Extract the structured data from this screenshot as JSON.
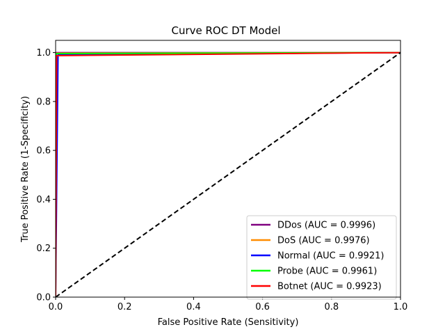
{
  "chart_data": {
    "type": "line",
    "title": "Curve ROC DT Model",
    "xlabel": "False Positive Rate (Sensitivity)",
    "ylabel": "True Positive Rate (1-Specificity)",
    "xlim": [
      0,
      1
    ],
    "ylim": [
      0,
      1.05
    ],
    "xticks": [
      {
        "value": 0,
        "label": "0.0"
      },
      {
        "value": 0.2,
        "label": "0.2"
      },
      {
        "value": 0.4,
        "label": "0.4"
      },
      {
        "value": 0.6,
        "label": "0.6"
      },
      {
        "value": 0.8,
        "label": "0.8"
      },
      {
        "value": 1.0,
        "label": "1.0"
      }
    ],
    "yticks": [
      {
        "value": 0,
        "label": "0.0"
      },
      {
        "value": 0.2,
        "label": "0.2"
      },
      {
        "value": 0.4,
        "label": "0.4"
      },
      {
        "value": 0.6,
        "label": "0.6"
      },
      {
        "value": 0.8,
        "label": "0.8"
      },
      {
        "value": 1.0,
        "label": "1.0"
      }
    ],
    "grid": false,
    "legend_position": "lower-right",
    "series": [
      {
        "name": "DDos (AUC = 0.9996)",
        "color": "#800080",
        "x": [
          0,
          0.0005,
          1
        ],
        "y": [
          0,
          0.9997,
          1
        ]
      },
      {
        "name": "DoS (AUC = 0.9976)",
        "color": "#ff8c00",
        "x": [
          0,
          0.002,
          1
        ],
        "y": [
          0,
          0.9975,
          1
        ]
      },
      {
        "name": "Normal (AUC = 0.9921)",
        "color": "#0000ff",
        "x": [
          0,
          0.007,
          1
        ],
        "y": [
          0,
          0.991,
          1
        ]
      },
      {
        "name": "Probe (AUC = 0.9961)",
        "color": "#00ff00",
        "x": [
          0,
          0.002,
          1
        ],
        "y": [
          0,
          0.996,
          1
        ]
      },
      {
        "name": "Botnet (AUC = 0.9923)",
        "color": "#ff0000",
        "x": [
          0,
          0.003,
          1
        ],
        "y": [
          0,
          0.9875,
          1
        ]
      }
    ],
    "reference_line": {
      "x": [
        0,
        1
      ],
      "y": [
        0,
        1
      ],
      "color": "#000000",
      "style": "dashed"
    }
  }
}
